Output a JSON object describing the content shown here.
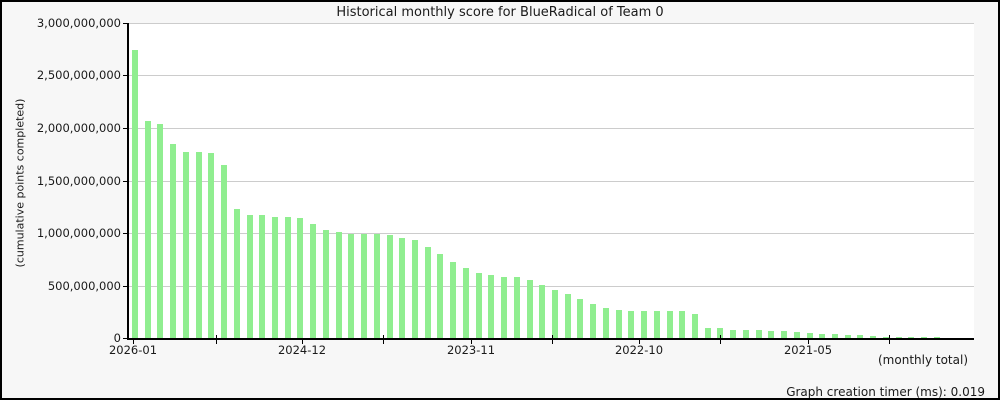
{
  "window": {
    "background_color": "#f7f7f7",
    "plot_background_color": "#ffffff",
    "border_color": "#000000"
  },
  "chart": {
    "title": "Historical monthly score for BlueRadical of Team 0",
    "y_axis_title": "(cumulative points completed)",
    "x_axis_note": "(monthly total)",
    "footer": "Graph creation timer (ms): 0.019",
    "bar_color": "#90EE90",
    "grid_color": "#cccccc",
    "axis_color": "#000000",
    "text_color": "#1a1a1a",
    "legend": "none"
  },
  "chart_data": {
    "type": "bar",
    "title": "Historical monthly score for BlueRadical of Team 0",
    "ylabel": "(cumulative points completed)",
    "xlabel": "(monthly total)",
    "ylim": [
      0,
      3000000000
    ],
    "grid": true,
    "y_ticks": [
      {
        "label": "3,000,000,000",
        "value": 3000000000
      },
      {
        "label": "2,500,000,000",
        "value": 2500000000
      },
      {
        "label": "2,000,000,000",
        "value": 2000000000
      },
      {
        "label": "1,500,000,000",
        "value": 1500000000
      },
      {
        "label": "1,000,000,000",
        "value": 1000000000
      },
      {
        "label": "500,000,000",
        "value": 500000000
      },
      {
        "label": "0",
        "value": 0
      }
    ],
    "x_ticks": [
      {
        "label": "2026-01",
        "pos": 0.005
      },
      {
        "label": "2024-12",
        "pos": 0.205
      },
      {
        "label": "2023-11",
        "pos": 0.405
      },
      {
        "label": "2022-10",
        "pos": 0.604
      },
      {
        "label": "2021-05",
        "pos": 0.804
      }
    ],
    "x_minor_tick_pos": [
      0.103,
      0.301,
      0.501,
      0.699,
      0.899
    ],
    "values": [
      2740000000,
      2070000000,
      2040000000,
      1850000000,
      1770000000,
      1770000000,
      1765000000,
      1650000000,
      1230000000,
      1175000000,
      1170000000,
      1150000000,
      1150000000,
      1140000000,
      1085000000,
      1030000000,
      1010000000,
      995000000,
      995000000,
      995000000,
      980000000,
      950000000,
      930000000,
      865000000,
      800000000,
      725000000,
      665000000,
      620000000,
      600000000,
      582000000,
      580000000,
      550000000,
      505000000,
      458000000,
      415000000,
      370000000,
      328000000,
      283000000,
      265000000,
      258000000,
      259000000,
      260000000,
      261000000,
      255000000,
      225000000,
      97000000,
      92000000,
      78000000,
      76000000,
      72000000,
      70000000,
      68000000,
      57000000,
      48000000,
      40000000,
      40000000,
      33000000,
      31000000,
      20000000,
      12000000,
      8000000,
      7000000,
      6000000,
      5000000
    ]
  }
}
